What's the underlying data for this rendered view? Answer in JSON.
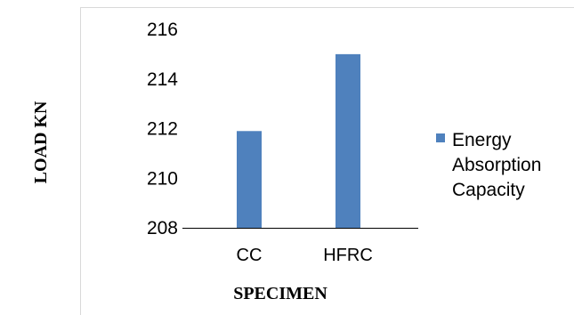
{
  "chart_data": {
    "type": "bar",
    "categories": [
      "CC",
      "HFRC"
    ],
    "series": [
      {
        "name": "Energy Absorption Capacity",
        "values": [
          211.9,
          215.0
        ],
        "color": "#4F81BD"
      }
    ],
    "xlabel": "SPECIMEN",
    "ylabel": "LOAD KN",
    "ylim": [
      208,
      216
    ],
    "yticks": [
      208,
      210,
      212,
      214,
      216
    ],
    "grid": false,
    "legend_position": "right"
  }
}
